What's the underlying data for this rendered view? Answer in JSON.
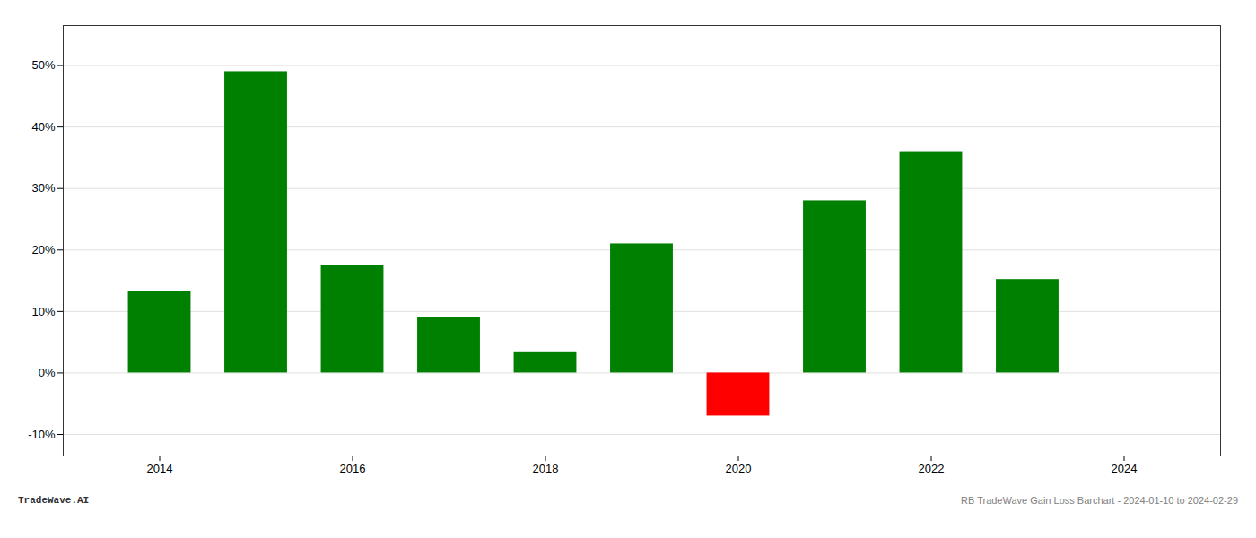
{
  "chart_data": {
    "type": "bar",
    "x": [
      2014,
      2015,
      2016,
      2017,
      2018,
      2019,
      2020,
      2021,
      2022,
      2023
    ],
    "values": [
      0.133,
      0.49,
      0.175,
      0.09,
      0.033,
      0.21,
      -0.07,
      0.28,
      0.36,
      0.152
    ],
    "colors": [
      "#008000",
      "#008000",
      "#008000",
      "#008000",
      "#008000",
      "#008000",
      "#ff0000",
      "#008000",
      "#008000",
      "#008000"
    ],
    "xlim": [
      2013,
      2025
    ],
    "xticks": [
      2014,
      2016,
      2018,
      2020,
      2022,
      2024
    ],
    "ylim": [
      -0.135,
      0.565
    ],
    "yticks": [
      {
        "value": -0.1,
        "label": "-10%"
      },
      {
        "value": 0,
        "label": "0%"
      },
      {
        "value": 0.1,
        "label": "10%"
      },
      {
        "value": 0.2,
        "label": "20%"
      },
      {
        "value": 0.3,
        "label": "30%"
      },
      {
        "value": 0.4,
        "label": "40%"
      },
      {
        "value": 0.5,
        "label": "50%"
      }
    ],
    "grid": true,
    "annotations": [
      "TradeWave.AI",
      "RB TradeWave Gain Loss Barchart - 2024-01-10 to 2024-02-29"
    ]
  }
}
